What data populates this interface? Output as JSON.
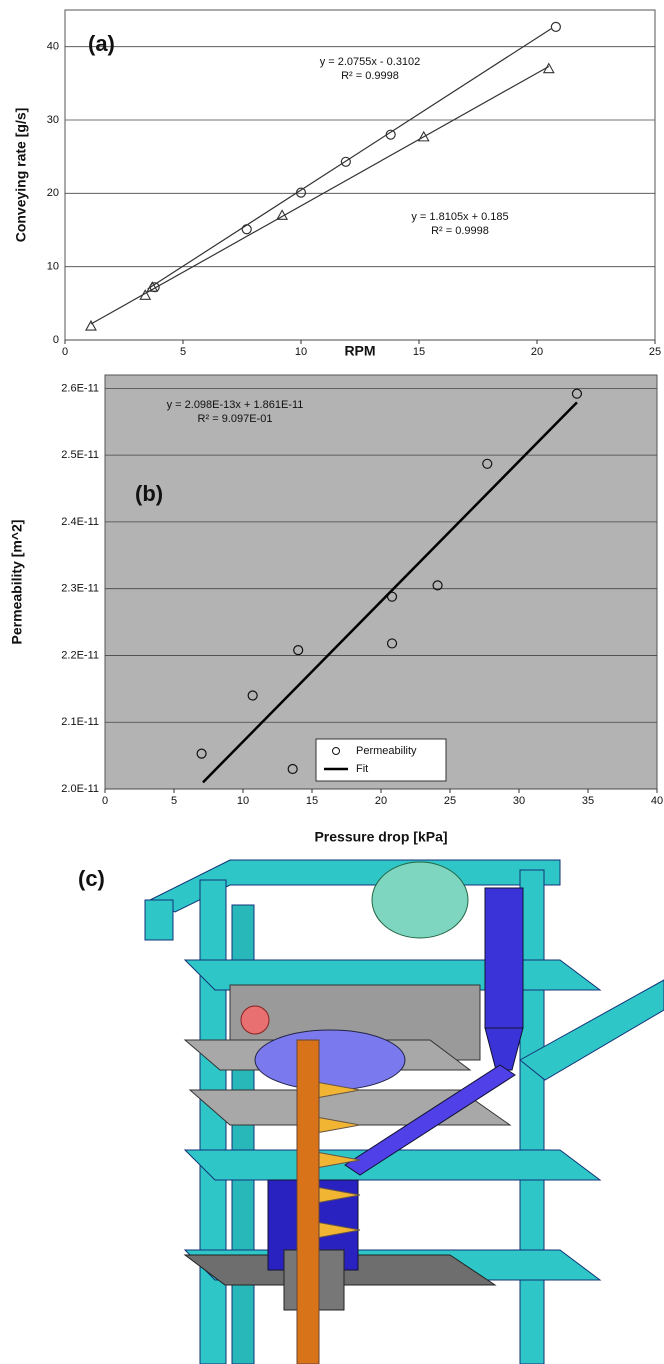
{
  "chart_data": [
    {
      "type": "scatter",
      "panel_label": "(a)",
      "x_label": "RPM",
      "y_label": "Conveying rate [g/s]",
      "xlim": [
        0,
        25
      ],
      "xticks": [
        0,
        5,
        10,
        15,
        20,
        25
      ],
      "ylim": [
        0,
        45
      ],
      "yticks": [
        0,
        10,
        20,
        30,
        40
      ],
      "grid": true,
      "background": "#ffffff",
      "series": [
        {
          "color": "#333333",
          "marker": "circle",
          "x": [
            3.8,
            7.7,
            10,
            11.9,
            13.8,
            20.8
          ],
          "values": [
            7.2,
            15.1,
            20.1,
            24.3,
            28,
            42.7
          ]
        },
        {
          "color": "#333333",
          "marker": "triangle",
          "x": [
            1.1,
            3.4,
            3.7,
            9.2,
            15.2,
            20.5
          ],
          "values": [
            1.9,
            6.1,
            7.2,
            17,
            27.7,
            37
          ]
        },
        {
          "color": "#333333",
          "marker": "line",
          "x": [
            3.5,
            20.6
          ],
          "values": [
            6.95,
            42.45
          ]
        },
        {
          "color": "#333333",
          "marker": "line",
          "x": [
            1.1,
            20.5
          ],
          "values": [
            2.18,
            37.3
          ]
        }
      ],
      "annotations": [
        "y = 2.0755x - 0.3102",
        "R² = 0.9998",
        "y = 1.8105x + 0.185",
        "R² = 0.9998"
      ]
    },
    {
      "type": "scatter",
      "panel_label": "(b)",
      "x_label": "Pressure drop [kPa]",
      "y_label": "Permeability [m^2]",
      "xlim": [
        0,
        40
      ],
      "xticks": [
        0,
        5,
        10,
        15,
        20,
        25,
        30,
        35,
        40
      ],
      "ylim": [
        2e-11,
        2.62e-11
      ],
      "yticks": [
        {
          "value": 2e-11,
          "label": "2.0E-11"
        },
        {
          "value": 2.1e-11,
          "label": "2.1E-11"
        },
        {
          "value": 2.2e-11,
          "label": "2.2E-11"
        },
        {
          "value": 2.3e-11,
          "label": "2.3E-11"
        },
        {
          "value": 2.4e-11,
          "label": "2.4E-11"
        },
        {
          "value": 2.5e-11,
          "label": "2.5E-11"
        },
        {
          "value": 2.6e-11,
          "label": "2.6E-11"
        }
      ],
      "grid": true,
      "background": "#b3b3b3",
      "legend": "lower center",
      "series": [
        {
          "name": "Permeability",
          "color": "#111111",
          "marker": "circle",
          "x": [
            7.0,
            10.7,
            13.6,
            14.0,
            20.8,
            20.8,
            24.1,
            27.7,
            34.2
          ],
          "values": [
            2.053e-11,
            2.14e-11,
            2.03e-11,
            2.208e-11,
            2.288e-11,
            2.218e-11,
            2.305e-11,
            2.487e-11,
            2.592e-11
          ]
        },
        {
          "name": "Fit",
          "color": "#000000",
          "marker": "line",
          "x": [
            7.1,
            34.2
          ],
          "values": [
            2.01e-11,
            2.579e-11
          ]
        }
      ],
      "annotations": [
        "y = 2.098E-13x + 1.861E-11",
        "R² = 9.097E-01"
      ]
    }
  ],
  "figure_c": {
    "panel_label": "(c)"
  }
}
